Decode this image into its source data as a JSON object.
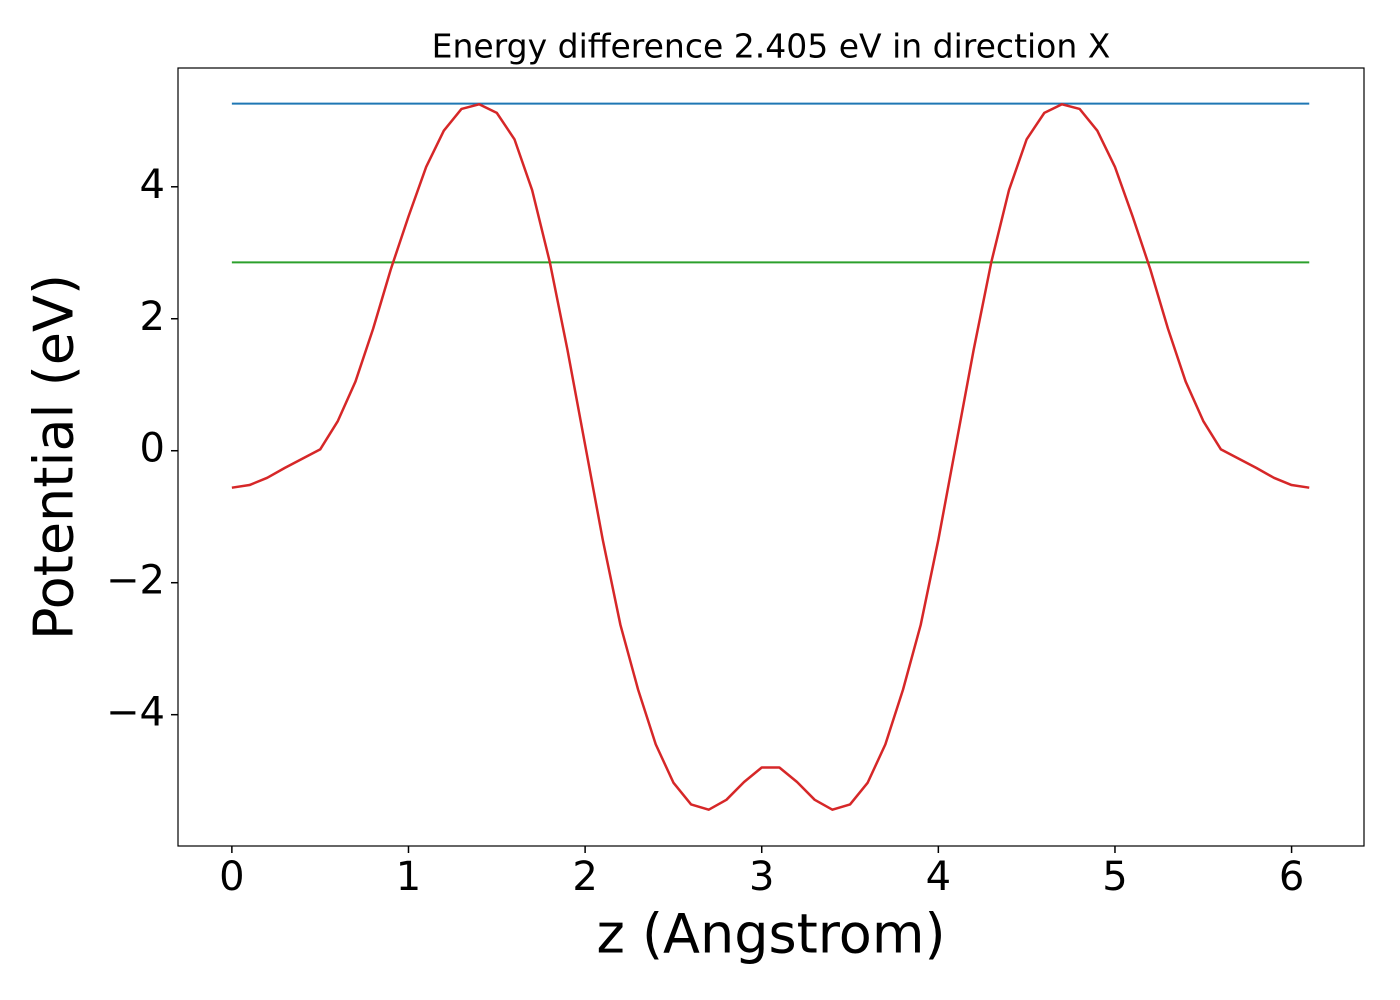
{
  "chart_data": {
    "type": "line",
    "title": "Energy difference 2.405 eV in direction X",
    "xlabel": "z (Angstrom)",
    "ylabel": "Potential (eV)",
    "x": [
      0,
      0.1,
      0.2,
      0.3,
      0.4,
      0.5,
      0.6,
      0.7,
      0.8,
      0.9,
      1.0,
      1.1,
      1.2,
      1.3,
      1.4,
      1.5,
      1.6,
      1.7,
      1.8,
      1.9,
      2.0,
      2.1,
      2.2,
      2.3,
      2.4,
      2.5,
      2.6,
      2.7,
      2.8,
      2.9,
      3.0,
      3.1,
      3.2,
      3.3,
      3.4,
      3.5,
      3.6,
      3.7,
      3.8,
      3.9,
      4.0,
      4.1,
      4.2,
      4.3,
      4.4,
      4.5,
      4.6,
      4.7,
      4.8,
      4.9,
      5.0,
      5.1,
      5.2,
      5.3,
      5.4,
      5.5,
      5.6,
      5.7,
      5.8,
      5.9,
      6.0,
      6.1
    ],
    "series": [
      {
        "color": "#d62728",
        "values": [
          -0.56,
          -0.52,
          -0.41,
          -0.26,
          -0.12,
          0.02,
          0.45,
          1.05,
          1.85,
          2.75,
          3.55,
          4.3,
          4.85,
          5.18,
          5.25,
          5.12,
          4.72,
          3.95,
          2.86,
          1.53,
          0.09,
          -1.35,
          -2.64,
          -3.62,
          -4.45,
          -5.03,
          -5.36,
          -5.44,
          -5.29,
          -5.02,
          -4.8,
          -4.8,
          -5.02,
          -5.29,
          -5.44,
          -5.36,
          -5.03,
          -4.45,
          -3.62,
          -2.64,
          -1.35,
          0.09,
          1.53,
          2.86,
          3.95,
          4.72,
          5.12,
          5.25,
          5.18,
          4.85,
          4.3,
          3.55,
          2.75,
          1.85,
          1.05,
          0.45,
          0.02,
          -0.12,
          -0.26,
          -0.41,
          -0.52,
          -0.56
        ]
      }
    ],
    "hlines": [
      {
        "value": 5.26,
        "color": "#1f77b4"
      },
      {
        "value": 2.855,
        "color": "#2ca02c"
      }
    ],
    "xlim": [
      -0.305,
      6.41
    ],
    "ylim": [
      -5.99,
      5.8
    ],
    "xticks": [
      0,
      1,
      2,
      3,
      4,
      5,
      6
    ],
    "yticks": [
      {
        "value": -4,
        "label": "−4"
      },
      {
        "value": -2,
        "label": "−2"
      },
      0,
      2,
      4
    ]
  }
}
